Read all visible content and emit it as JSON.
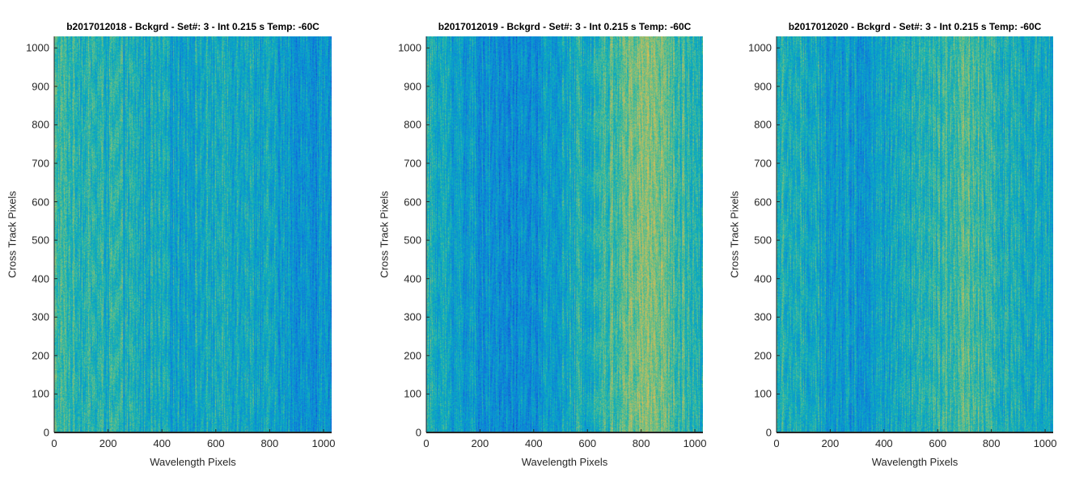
{
  "chart_data": [
    {
      "type": "heatmap",
      "title": "b2017012018 - Bckgrd - Set#: 3 - Int 0.215 s Temp: -60C",
      "xlabel": "Wavelength Pixels",
      "ylabel": "Cross Track Pixels",
      "xlim": [
        0,
        1030
      ],
      "ylim": [
        0,
        1030
      ],
      "xticks": [
        0,
        200,
        400,
        600,
        800,
        1000
      ],
      "yticks": [
        0,
        100,
        200,
        300,
        400,
        500,
        600,
        700,
        800,
        900,
        1000
      ],
      "colormap": "parula",
      "column_profile_x": [
        0,
        100,
        200,
        300,
        400,
        500,
        600,
        700,
        800,
        900,
        1030
      ],
      "column_profile_level": [
        0.45,
        0.42,
        0.4,
        0.38,
        0.35,
        0.34,
        0.37,
        0.38,
        0.33,
        0.28,
        0.26
      ]
    },
    {
      "type": "heatmap",
      "title": "b2017012019 - Bckgrd - Set#: 3 - Int 0.215 s Temp: -60C",
      "xlabel": "Wavelength Pixels",
      "ylabel": "Cross Track Pixels",
      "xlim": [
        0,
        1030
      ],
      "ylim": [
        0,
        1030
      ],
      "xticks": [
        0,
        200,
        400,
        600,
        800,
        1000
      ],
      "yticks": [
        0,
        100,
        200,
        300,
        400,
        500,
        600,
        700,
        800,
        900,
        1000
      ],
      "colormap": "parula",
      "column_profile_x": [
        0,
        100,
        200,
        300,
        400,
        500,
        600,
        700,
        800,
        850,
        900,
        1030
      ],
      "column_profile_level": [
        0.4,
        0.33,
        0.28,
        0.24,
        0.26,
        0.33,
        0.4,
        0.47,
        0.55,
        0.58,
        0.48,
        0.4
      ]
    },
    {
      "type": "heatmap",
      "title": "b2017012020 - Bckgrd - Set#: 3 - Int 0.215 s Temp: -60C",
      "xlabel": "Wavelength Pixels",
      "ylabel": "Cross Track Pixels",
      "xlim": [
        0,
        1030
      ],
      "ylim": [
        0,
        1030
      ],
      "xticks": [
        0,
        200,
        400,
        600,
        800,
        1000
      ],
      "yticks": [
        0,
        100,
        200,
        300,
        400,
        500,
        600,
        700,
        800,
        900,
        1000
      ],
      "colormap": "parula",
      "column_profile_x": [
        0,
        100,
        200,
        300,
        400,
        500,
        600,
        700,
        800,
        900,
        1030
      ],
      "column_profile_level": [
        0.4,
        0.36,
        0.32,
        0.3,
        0.33,
        0.37,
        0.41,
        0.5,
        0.42,
        0.36,
        0.34
      ]
    }
  ]
}
